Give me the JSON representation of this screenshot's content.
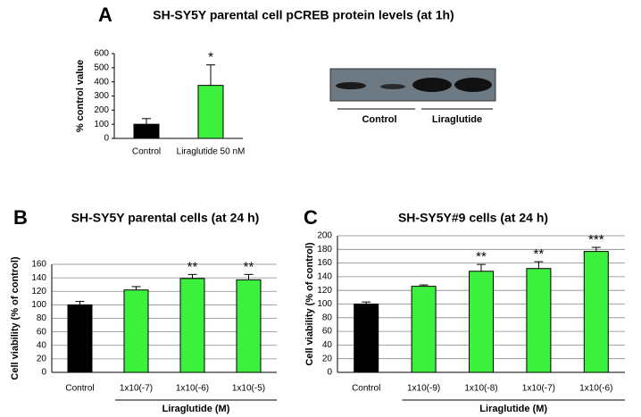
{
  "chart_data": [
    {
      "type": "bar",
      "label": "A",
      "title": "SH-SY5Y parental cell pCREB protein levels (at 1h)",
      "y_label": "% control value",
      "categories": [
        "Control",
        "Liraglutide 50 nM"
      ],
      "values": [
        100,
        375
      ],
      "errors": [
        40,
        145
      ],
      "colors": [
        "#000000",
        "#3ef03e"
      ],
      "significance": [
        null,
        "*"
      ],
      "ylim": [
        0,
        600
      ],
      "yticks": [
        0,
        100,
        200,
        300,
        400,
        500,
        600
      ],
      "grid": false
    },
    {
      "type": "bar",
      "label": "B",
      "title": "SH-SY5Y parental cells (at 24 h)",
      "y_label": "Cell viability (% of control)",
      "categories": [
        "Control",
        "1x10(-7)",
        "1x10(-6)",
        "1x10(-5)"
      ],
      "x_group_label": "Liraglutide (M)",
      "values": [
        100,
        122,
        139,
        137
      ],
      "errors": [
        5,
        5,
        6,
        8
      ],
      "colors": [
        "#000000",
        "#3ef03e",
        "#3ef03e",
        "#3ef03e"
      ],
      "significance": [
        null,
        null,
        "**",
        "**"
      ],
      "ylim": [
        0,
        160
      ],
      "yticks": [
        0,
        20,
        40,
        60,
        80,
        100,
        120,
        140,
        160
      ],
      "grid": true
    },
    {
      "type": "bar",
      "label": "C",
      "title": "SH-SY5Y#9 cells (at 24 h)",
      "y_label": "Cell viability (% of control)",
      "categories": [
        "Control",
        "1x10(-9)",
        "1x10(-8)",
        "1x10(-7)",
        "1x10(-6)"
      ],
      "x_group_label": "Liraglutide (M)",
      "values": [
        100,
        126,
        148,
        152,
        177
      ],
      "errors": [
        3,
        2,
        10,
        10,
        6
      ],
      "colors": [
        "#000000",
        "#3ef03e",
        "#3ef03e",
        "#3ef03e",
        "#3ef03e"
      ],
      "significance": [
        null,
        null,
        "**",
        "**",
        "***"
      ],
      "ylim": [
        0,
        200
      ],
      "yticks": [
        0,
        20,
        40,
        60,
        80,
        100,
        120,
        140,
        160,
        180,
        200
      ],
      "grid": true
    }
  ],
  "blot": {
    "group_labels": [
      "Control",
      "Liraglutide"
    ]
  }
}
